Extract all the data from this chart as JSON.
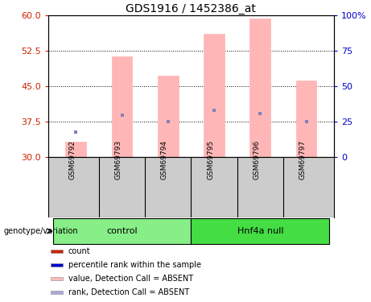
{
  "title": "GDS1916 / 1452386_at",
  "samples": [
    "GSM69792",
    "GSM69793",
    "GSM69794",
    "GSM69795",
    "GSM69796",
    "GSM69797"
  ],
  "bar_values": [
    33.2,
    51.2,
    47.2,
    56.0,
    59.2,
    46.2
  ],
  "rank_values": [
    35.2,
    38.8,
    37.5,
    39.8,
    39.2,
    37.5
  ],
  "bar_bottom": 30.0,
  "ylim_left": [
    30,
    60
  ],
  "ylim_right": [
    0,
    100
  ],
  "yticks_left": [
    30,
    37.5,
    45,
    52.5,
    60
  ],
  "yticks_right": [
    0,
    25,
    50,
    75,
    100
  ],
  "bar_color": "#FFB6B6",
  "rank_color": "#8080BB",
  "bar_width": 0.45,
  "rank_marker_size": 12,
  "groups": [
    {
      "label": "control",
      "samples": [
        0,
        1,
        2
      ],
      "color": "#88EE88"
    },
    {
      "label": "Hnf4a null",
      "samples": [
        3,
        4,
        5
      ],
      "color": "#44DD44"
    }
  ],
  "group_label": "genotype/variation",
  "legend_items": [
    {
      "label": "count",
      "color": "#CC2200"
    },
    {
      "label": "percentile rank within the sample",
      "color": "#0000CC"
    },
    {
      "label": "value, Detection Call = ABSENT",
      "color": "#FFBBBB"
    },
    {
      "label": "rank, Detection Call = ABSENT",
      "color": "#AAAADD"
    }
  ],
  "background_color": "#FFFFFF",
  "plot_bg_color": "#FFFFFF",
  "grid_color": "#000000",
  "axis_label_color_left": "#CC2200",
  "axis_label_color_right": "#0000CC",
  "sample_box_color": "#CCCCCC"
}
